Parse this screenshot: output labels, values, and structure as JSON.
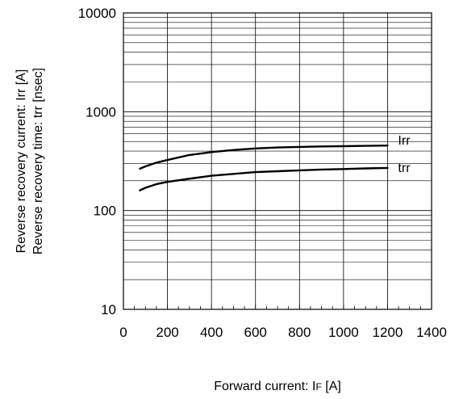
{
  "chart_data": {
    "type": "line",
    "title": "",
    "xlabel": "Forward current: I",
    "xlabel_subscript": "F",
    "xlabel_unit": " [A]",
    "ylabel_lines": [
      "Reverse recovery current: Irr [A]",
      "Reverse recovery time: trr [nsec]"
    ],
    "xlim": [
      0,
      1400
    ],
    "ylim": [
      10,
      10000
    ],
    "y_scale": "log",
    "grid": true,
    "x_ticks": [
      "0",
      "200",
      "400",
      "600",
      "800",
      "1000",
      "1200",
      "1400"
    ],
    "y_ticks": [
      "10",
      "100",
      "1000",
      "10000"
    ],
    "series": [
      {
        "name": "Irr",
        "x": [
          75,
          100,
          150,
          200,
          300,
          400,
          500,
          600,
          700,
          800,
          900,
          1000,
          1100,
          1200
        ],
        "y": [
          265,
          280,
          305,
          325,
          365,
          390,
          410,
          425,
          435,
          440,
          445,
          448,
          452,
          455
        ]
      },
      {
        "name": "trr",
        "x": [
          75,
          100,
          150,
          200,
          300,
          400,
          500,
          600,
          700,
          800,
          900,
          1000,
          1100,
          1200
        ],
        "y": [
          160,
          170,
          185,
          195,
          210,
          225,
          235,
          245,
          250,
          255,
          260,
          263,
          267,
          270
        ]
      }
    ]
  }
}
